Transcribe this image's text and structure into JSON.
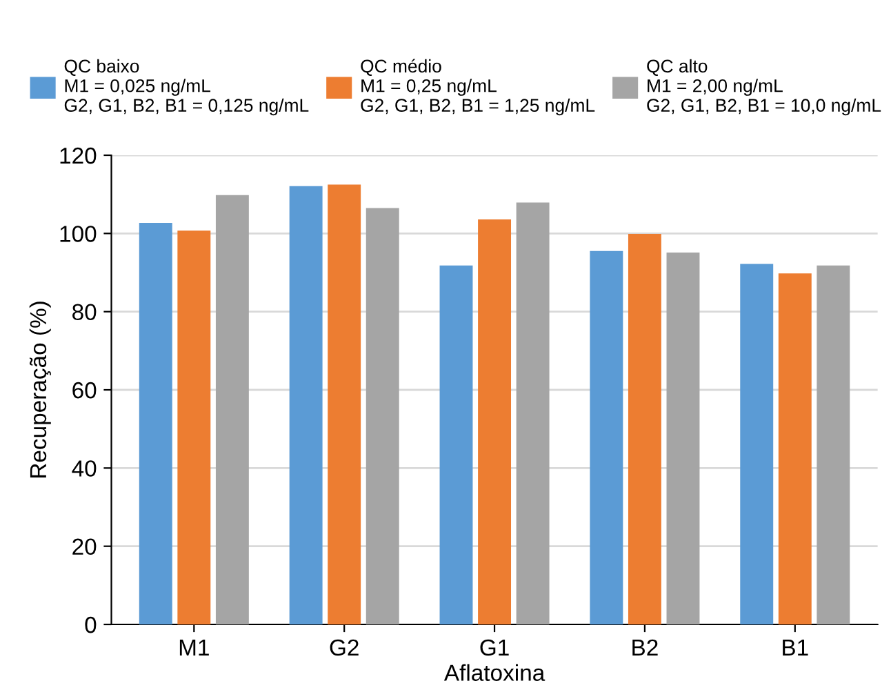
{
  "chart_data": {
    "type": "bar",
    "xlabel": "Aflatoxina",
    "ylabel": "Recuperação (%)",
    "categories": [
      "M1",
      "G2",
      "G1",
      "B2",
      "B1"
    ],
    "series": [
      {
        "name": "QC baixo\nM1 = 0,025 ng/mL\nG2, G1, B2, B1 = 0,125 ng/mL",
        "color": "#5b9bd5",
        "values": [
          102.7,
          112.1,
          91.8,
          95.5,
          92.2
        ]
      },
      {
        "name": "QC médio\nM1 = 0,25 ng/mL\nG2, G1, B2, B1 = 1,25 ng/mL",
        "color": "#ed7d31",
        "values": [
          100.7,
          112.5,
          103.6,
          99.9,
          89.8
        ]
      },
      {
        "name": "QC alto\nM1 = 2,00 ng/mL\nG2, G1, B2, B1 = 10,0 ng/mL",
        "color": "#a5a5a5",
        "values": [
          109.8,
          106.5,
          107.9,
          95.1,
          91.8
        ]
      }
    ],
    "ylim": [
      0,
      120
    ],
    "yticks": [
      0,
      20,
      40,
      60,
      80,
      100,
      120
    ],
    "grid": "y",
    "legend": "top"
  }
}
